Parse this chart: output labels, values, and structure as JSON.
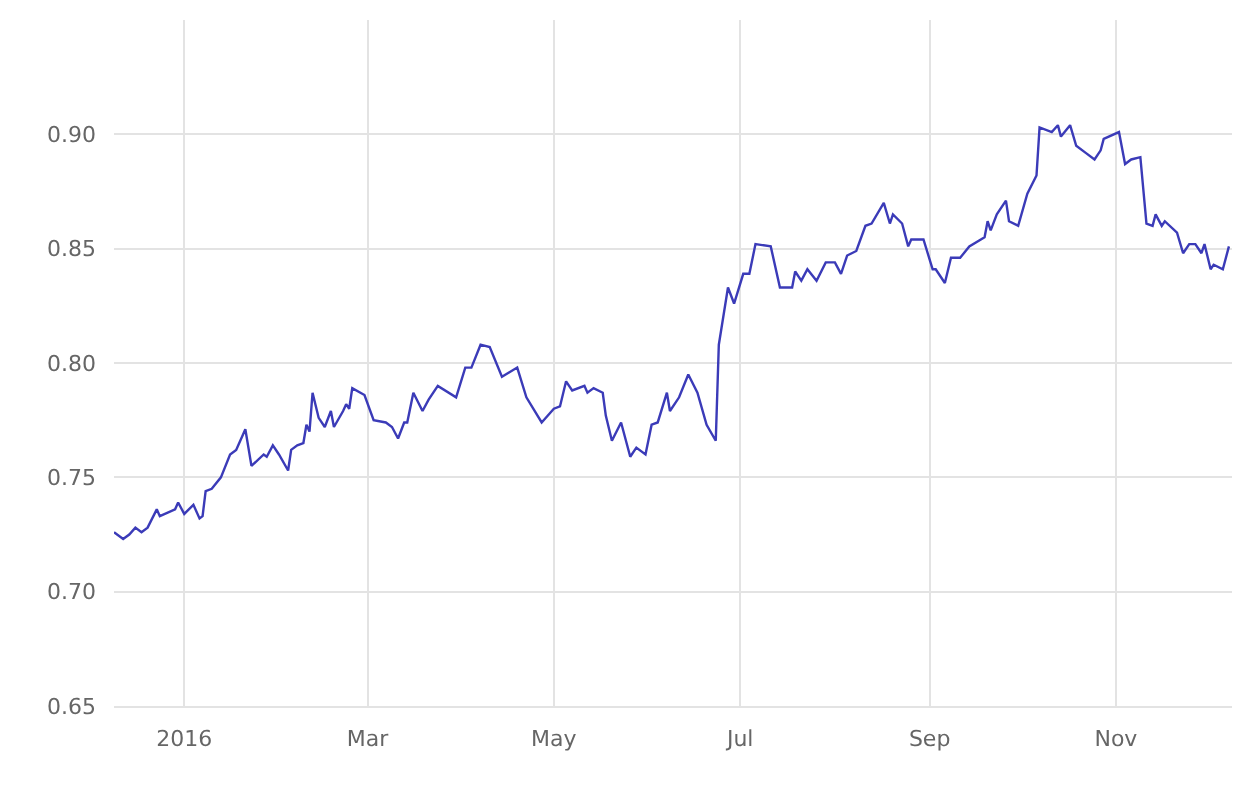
{
  "chart_data": {
    "type": "line",
    "x": [
      "2015-12-09",
      "2015-12-12",
      "2015-12-14",
      "2015-12-16",
      "2015-12-18",
      "2015-12-20",
      "2015-12-23",
      "2015-12-24",
      "2015-12-29",
      "2015-12-30",
      "2016-01-01",
      "2016-01-04",
      "2016-01-06",
      "2016-01-07",
      "2016-01-08",
      "2016-01-10",
      "2016-01-13",
      "2016-01-16",
      "2016-01-18",
      "2016-01-21",
      "2016-01-23",
      "2016-01-27",
      "2016-01-28",
      "2016-01-30",
      "2016-02-01",
      "2016-02-04",
      "2016-02-05",
      "2016-02-07",
      "2016-02-09",
      "2016-02-10",
      "2016-02-11",
      "2016-02-12",
      "2016-02-14",
      "2016-02-16",
      "2016-02-18",
      "2016-02-19",
      "2016-02-22",
      "2016-02-23",
      "2016-02-24",
      "2016-02-25",
      "2016-02-29",
      "2016-03-03",
      "2016-03-07",
      "2016-03-09",
      "2016-03-11",
      "2016-03-13",
      "2016-03-14",
      "2016-03-16",
      "2016-03-19",
      "2016-03-21",
      "2016-03-24",
      "2016-03-30",
      "2016-04-02",
      "2016-04-04",
      "2016-04-07",
      "2016-04-10",
      "2016-04-14",
      "2016-04-19",
      "2016-04-22",
      "2016-04-27",
      "2016-05-01",
      "2016-05-03",
      "2016-05-05",
      "2016-05-07",
      "2016-05-11",
      "2016-05-12",
      "2016-05-14",
      "2016-05-17",
      "2016-05-18",
      "2016-05-20",
      "2016-05-23",
      "2016-05-26",
      "2016-05-28",
      "2016-05-31",
      "2016-06-02",
      "2016-06-04",
      "2016-06-07",
      "2016-06-08",
      "2016-06-11",
      "2016-06-14",
      "2016-06-17",
      "2016-06-20",
      "2016-06-23",
      "2016-06-24",
      "2016-06-27",
      "2016-06-29",
      "2016-07-02",
      "2016-07-04",
      "2016-07-06",
      "2016-07-11",
      "2016-07-14",
      "2016-07-18",
      "2016-07-19",
      "2016-07-21",
      "2016-07-23",
      "2016-07-26",
      "2016-07-29",
      "2016-08-01",
      "2016-08-03",
      "2016-08-05",
      "2016-08-08",
      "2016-08-11",
      "2016-08-13",
      "2016-08-17",
      "2016-08-19",
      "2016-08-20",
      "2016-08-23",
      "2016-08-25",
      "2016-08-26",
      "2016-08-30",
      "2016-09-02",
      "2016-09-03",
      "2016-09-06",
      "2016-09-08",
      "2016-09-11",
      "2016-09-14",
      "2016-09-19",
      "2016-09-20",
      "2016-09-21",
      "2016-09-23",
      "2016-09-26",
      "2016-09-27",
      "2016-09-30",
      "2016-10-03",
      "2016-10-06",
      "2016-10-07",
      "2016-10-11",
      "2016-10-13",
      "2016-10-14",
      "2016-10-17",
      "2016-10-19",
      "2016-10-22",
      "2016-10-25",
      "2016-10-27",
      "2016-10-28",
      "2016-11-02",
      "2016-11-04",
      "2016-11-06",
      "2016-11-09",
      "2016-11-11",
      "2016-11-13",
      "2016-11-14",
      "2016-11-16",
      "2016-11-17",
      "2016-11-21",
      "2016-11-23",
      "2016-11-25",
      "2016-11-27",
      "2016-11-29",
      "2016-11-30",
      "2016-12-02",
      "2016-12-03",
      "2016-12-06",
      "2016-12-08"
    ],
    "series": [
      {
        "color": "#3b3bb8",
        "values": [
          0.726,
          0.723,
          0.725,
          0.728,
          0.726,
          0.728,
          0.736,
          0.733,
          0.736,
          0.739,
          0.734,
          0.738,
          0.732,
          0.733,
          0.744,
          0.745,
          0.75,
          0.76,
          0.762,
          0.771,
          0.755,
          0.76,
          0.759,
          0.764,
          0.76,
          0.753,
          0.762,
          0.764,
          0.765,
          0.773,
          0.77,
          0.787,
          0.776,
          0.772,
          0.779,
          0.772,
          0.779,
          0.782,
          0.78,
          0.789,
          0.786,
          0.775,
          0.774,
          0.772,
          0.767,
          0.774,
          0.774,
          0.787,
          0.779,
          0.784,
          0.79,
          0.785,
          0.798,
          0.798,
          0.808,
          0.807,
          0.794,
          0.798,
          0.785,
          0.774,
          0.78,
          0.781,
          0.792,
          0.788,
          0.79,
          0.787,
          0.789,
          0.787,
          0.777,
          0.766,
          0.774,
          0.759,
          0.763,
          0.76,
          0.773,
          0.774,
          0.787,
          0.779,
          0.785,
          0.795,
          0.787,
          0.773,
          0.766,
          0.808,
          0.833,
          0.826,
          0.839,
          0.839,
          0.852,
          0.851,
          0.833,
          0.833,
          0.84,
          0.836,
          0.841,
          0.836,
          0.844,
          0.844,
          0.839,
          0.847,
          0.849,
          0.86,
          0.861,
          0.87,
          0.861,
          0.865,
          0.861,
          0.851,
          0.854,
          0.854,
          0.841,
          0.841,
          0.835,
          0.846,
          0.846,
          0.851,
          0.855,
          0.862,
          0.858,
          0.865,
          0.871,
          0.862,
          0.86,
          0.874,
          0.882,
          0.903,
          0.901,
          0.904,
          0.899,
          0.904,
          0.895,
          0.892,
          0.889,
          0.893,
          0.898,
          0.901,
          0.887,
          0.889,
          0.89,
          0.861,
          0.86,
          0.865,
          0.86,
          0.862,
          0.857,
          0.848,
          0.852,
          0.852,
          0.848,
          0.852,
          0.841,
          0.843,
          0.841,
          0.851
        ]
      }
    ],
    "xlim": [
      "2015-12-09",
      "2016-12-09"
    ],
    "xticks": [
      {
        "value": "2016-01-01",
        "label": "2016"
      },
      {
        "value": "2016-03-01",
        "label": "Mar"
      },
      {
        "value": "2016-05-01",
        "label": "May"
      },
      {
        "value": "2016-07-01",
        "label": "Jul"
      },
      {
        "value": "2016-09-01",
        "label": "Sep"
      },
      {
        "value": "2016-11-01",
        "label": "Nov"
      }
    ],
    "ylim": [
      0.65,
      0.95
    ],
    "yticks": [
      {
        "value": 0.65,
        "label": "0.65"
      },
      {
        "value": 0.7,
        "label": "0.70"
      },
      {
        "value": 0.75,
        "label": "0.75"
      },
      {
        "value": 0.8,
        "label": "0.80"
      },
      {
        "value": 0.85,
        "label": "0.85"
      },
      {
        "value": 0.9,
        "label": "0.90"
      }
    ],
    "grid": true
  }
}
